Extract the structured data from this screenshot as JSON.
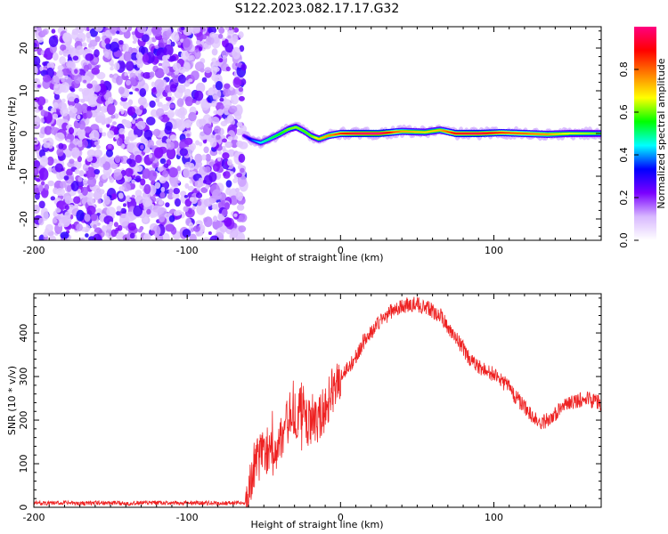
{
  "title": "S122.2023.082.17.17.G32",
  "chart_data": [
    {
      "type": "heatmap",
      "xlabel": "Height of straight line (km)",
      "ylabel": "Frequency (Hz)",
      "xlim": [
        -200,
        170
      ],
      "ylim": [
        -25,
        25
      ],
      "x_ticks": [
        -200,
        -100,
        0,
        100
      ],
      "y_ticks": [
        -20,
        -10,
        0,
        10,
        20
      ],
      "noise_region_x": [
        -200,
        -63
      ],
      "signal_track": [
        {
          "x": -63,
          "f": -0.5,
          "a": 0.25
        },
        {
          "x": -58,
          "f": -1.5,
          "a": 0.35
        },
        {
          "x": -52,
          "f": -2.2,
          "a": 0.45
        },
        {
          "x": -47,
          "f": -1.4,
          "a": 0.5
        },
        {
          "x": -40,
          "f": -0.2,
          "a": 0.55
        },
        {
          "x": -34,
          "f": 1.0,
          "a": 0.6
        },
        {
          "x": -29,
          "f": 1.5,
          "a": 0.62
        },
        {
          "x": -24,
          "f": 0.6,
          "a": 0.58
        },
        {
          "x": -19,
          "f": -0.6,
          "a": 0.6
        },
        {
          "x": -14,
          "f": -1.3,
          "a": 0.7
        },
        {
          "x": -8,
          "f": -0.5,
          "a": 0.75
        },
        {
          "x": 0,
          "f": 0.0,
          "a": 0.85
        },
        {
          "x": 10,
          "f": 0.0,
          "a": 0.95
        },
        {
          "x": 25,
          "f": 0.0,
          "a": 1.0
        },
        {
          "x": 40,
          "f": 0.5,
          "a": 0.75
        },
        {
          "x": 55,
          "f": 0.3,
          "a": 0.7
        },
        {
          "x": 65,
          "f": 0.8,
          "a": 0.72
        },
        {
          "x": 75,
          "f": 0.0,
          "a": 0.9
        },
        {
          "x": 90,
          "f": 0.0,
          "a": 0.95
        },
        {
          "x": 105,
          "f": 0.2,
          "a": 0.85
        },
        {
          "x": 120,
          "f": 0.0,
          "a": 0.8
        },
        {
          "x": 135,
          "f": -0.2,
          "a": 0.75
        },
        {
          "x": 150,
          "f": 0.0,
          "a": 0.65
        },
        {
          "x": 170,
          "f": 0.0,
          "a": 0.6
        }
      ],
      "colorbar": {
        "label": "Normalized spectral amplitude",
        "ticks": [
          0.0,
          0.2,
          0.4,
          0.6,
          0.8
        ],
        "range": [
          0,
          1
        ],
        "colors": [
          "#ffffff",
          "#d8b8ff",
          "#7a00ff",
          "#0000ff",
          "#00ffff",
          "#00ff00",
          "#ffff00",
          "#ff8000",
          "#ff0000",
          "#ff0080"
        ]
      }
    },
    {
      "type": "line",
      "xlabel": "Height of straight line (km)",
      "ylabel": "SNR (10 * v/v)",
      "xlim": [
        -200,
        170
      ],
      "ylim": [
        0,
        490
      ],
      "x_ticks": [
        -200,
        -100,
        0,
        100
      ],
      "y_ticks": [
        0,
        100,
        200,
        300,
        400
      ],
      "color": "#ee2222",
      "series": [
        {
          "x": [
            -200,
            -190,
            -180,
            -170,
            -160,
            -150,
            -140,
            -130,
            -120,
            -110,
            -100,
            -90,
            -80,
            -70,
            -65,
            -62,
            -60,
            -57,
            -54,
            -50,
            -45,
            -40,
            -35,
            -32,
            -28,
            -25,
            -22,
            -18,
            -15,
            -10,
            -5,
            0,
            5,
            10,
            15,
            20,
            25,
            30,
            35,
            40,
            45,
            50,
            55,
            60,
            65,
            70,
            75,
            80,
            85,
            90,
            95,
            100,
            105,
            110,
            115,
            120,
            125,
            130,
            135,
            140,
            145,
            150,
            155,
            160,
            165,
            170
          ],
          "y": [
            10,
            9,
            10,
            9,
            10,
            10,
            9,
            10,
            10,
            9,
            10,
            10,
            9,
            10,
            10,
            12,
            25,
            90,
            110,
            135,
            120,
            150,
            190,
            230,
            200,
            240,
            190,
            210,
            195,
            230,
            270,
            300,
            320,
            345,
            380,
            400,
            425,
            440,
            455,
            460,
            465,
            465,
            460,
            450,
            440,
            415,
            390,
            365,
            335,
            320,
            315,
            305,
            290,
            275,
            250,
            230,
            210,
            195,
            200,
            215,
            230,
            240,
            245,
            250,
            245,
            240
          ]
        }
      ]
    }
  ]
}
